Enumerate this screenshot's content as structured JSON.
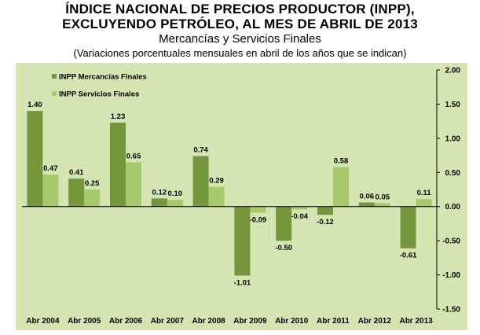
{
  "title_line1": "ÍNDICE NACIONAL DE PRECIOS PRODUCTOR (INPP),",
  "title_line2": "EXCLUYENDO PETRÓLEO, AL MES DE ABRIL DE 2013",
  "subtitle": "Mercancías y Servicios Finales",
  "note": "(Variaciones porcentuales mensuales en abril de los años que se indican)",
  "colors": {
    "background": "#d5e5b1",
    "series1": "#75963b",
    "series2": "#a6c96b"
  },
  "chart_data": {
    "type": "bar",
    "categories": [
      "Abr 2004",
      "Abr 2005",
      "Abr 2006",
      "Abr 2007",
      "Abr 2008",
      "Abr 2009",
      "Abr 2010",
      "Abr 2011",
      "Abr 2012",
      "Abr 2013"
    ],
    "series": [
      {
        "name": "INPP Mercancías Finales",
        "values": [
          1.4,
          0.41,
          1.23,
          0.12,
          0.74,
          -1.01,
          -0.5,
          -0.12,
          0.06,
          -0.61
        ]
      },
      {
        "name": "INPP Servicios  Finales",
        "values": [
          0.47,
          0.25,
          0.65,
          0.1,
          0.29,
          -0.09,
          -0.04,
          0.58,
          0.05,
          0.11
        ]
      }
    ],
    "value_labels": [
      [
        "1.40",
        "0.41",
        "1.23",
        "0.12",
        "0.74",
        "-1.01",
        "-0.50",
        "-0.12",
        "0.06",
        "-0.61"
      ],
      [
        "0.47",
        "0.25",
        "0.65",
        "0.10",
        "0.29",
        "-0.09",
        "-0.04",
        "0.58",
        "0.05",
        "0.11"
      ]
    ],
    "yticks": [
      "2.00",
      "1.50",
      "1.00",
      "0.50",
      "0.00",
      "-0.50",
      "-1.00",
      "-1.50"
    ],
    "ylim": [
      -1.5,
      2.0
    ],
    "y_axis_side": "right",
    "grid": false,
    "legend_position": "top-left"
  }
}
